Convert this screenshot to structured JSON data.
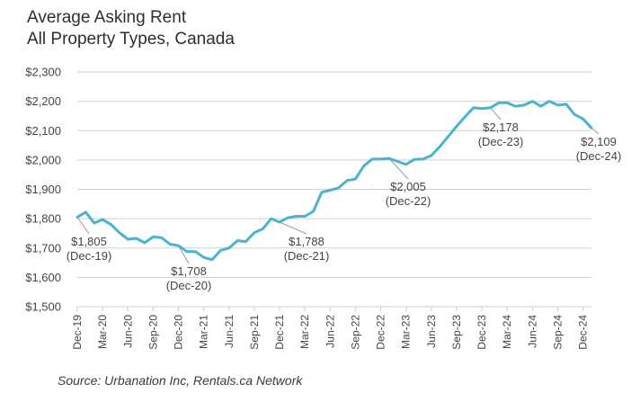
{
  "chart_data": {
    "type": "line",
    "title_line1": "Average Asking Rent",
    "title_line2": "All Property Types, Canada",
    "source": "Source: Urbanation Inc, Rentals.ca Network",
    "color": "#4bb3cf",
    "ylim": [
      1500,
      2300
    ],
    "yticks": [
      1500,
      1600,
      1700,
      1800,
      1900,
      2000,
      2100,
      2200,
      2300
    ],
    "ytick_labels": [
      "$1,500",
      "$1,600",
      "$1,700",
      "$1,800",
      "$1,900",
      "$2,000",
      "$2,100",
      "$2,200",
      "$2,300"
    ],
    "xtick_labels": [
      "Dec-19",
      "Mar-20",
      "Jun-20",
      "Sep-20",
      "Dec-20",
      "Mar-21",
      "Jun-21",
      "Sep-21",
      "Dec-21",
      "Mar-22",
      "Jun-22",
      "Sep-22",
      "Dec-22",
      "Mar-23",
      "Jun-23",
      "Sep-23",
      "Dec-23",
      "Mar-24",
      "Jun-24",
      "Sep-24",
      "Dec-24"
    ],
    "grid": true,
    "values": [
      1805,
      1822,
      1785,
      1797,
      1780,
      1752,
      1730,
      1733,
      1718,
      1738,
      1735,
      1713,
      1708,
      1688,
      1688,
      1668,
      1660,
      1692,
      1700,
      1725,
      1722,
      1752,
      1765,
      1800,
      1788,
      1803,
      1808,
      1808,
      1825,
      1890,
      1897,
      1905,
      1930,
      1935,
      1980,
      2003,
      2003,
      2005,
      1995,
      1985,
      2002,
      2003,
      2015,
      2045,
      2080,
      2115,
      2147,
      2178,
      2175,
      2178,
      2195,
      2195,
      2183,
      2187,
      2200,
      2183,
      2200,
      2187,
      2190,
      2155,
      2140,
      2109
    ],
    "annotations": [
      {
        "index": 0,
        "value_label": "$1,805",
        "date_label": "(Dec-19)"
      },
      {
        "index": 12,
        "value_label": "$1,708",
        "date_label": "(Dec-20)"
      },
      {
        "index": 24,
        "value_label": "$1,788",
        "date_label": "(Dec-21)"
      },
      {
        "index": 37,
        "value_label": "$2,005",
        "date_label": "(Dec-22)"
      },
      {
        "index": 49,
        "value_label": "$2,178",
        "date_label": "(Dec-23)"
      },
      {
        "index": 61,
        "value_label": "$2,109",
        "date_label": "(Dec-24)"
      }
    ]
  }
}
